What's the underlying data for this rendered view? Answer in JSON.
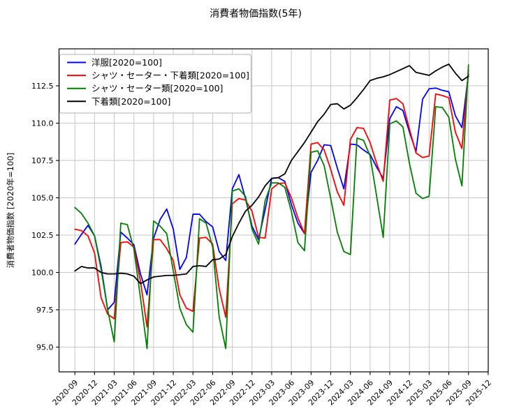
{
  "chart_data": {
    "type": "line",
    "title": "消費者物価指数(5年)",
    "ylabel": "消費者物価指数 [2020年=100]",
    "grid": true,
    "legend_position": "upper left",
    "ylim": [
      93.35,
      114.98
    ],
    "y_ticks": [
      95.0,
      97.5,
      100.0,
      102.5,
      105.0,
      107.5,
      110.0,
      112.5
    ],
    "x_tick_labels": [
      "2020-09",
      "2020-12",
      "2021-03",
      "2021-06",
      "2021-09",
      "2021-12",
      "2022-03",
      "2022-06",
      "2022-09",
      "2022-12",
      "2023-03",
      "2023-06",
      "2023-09",
      "2023-12",
      "2024-03",
      "2024-06",
      "2024-09",
      "2024-12",
      "2025-03",
      "2025-06",
      "2025-09",
      "2025-12"
    ],
    "x": [
      "2020-09",
      "2020-10",
      "2020-11",
      "2020-12",
      "2021-01",
      "2021-02",
      "2021-03",
      "2021-04",
      "2021-05",
      "2021-06",
      "2021-07",
      "2021-08",
      "2021-09",
      "2021-10",
      "2021-11",
      "2021-12",
      "2022-01",
      "2022-02",
      "2022-03",
      "2022-04",
      "2022-05",
      "2022-06",
      "2022-07",
      "2022-08",
      "2022-09",
      "2022-10",
      "2022-11",
      "2022-12",
      "2023-01",
      "2023-02",
      "2023-03",
      "2023-04",
      "2023-05",
      "2023-06",
      "2023-07",
      "2023-08",
      "2023-09",
      "2023-10",
      "2023-11",
      "2023-12",
      "2024-01",
      "2024-02",
      "2024-03",
      "2024-04",
      "2024-05",
      "2024-06",
      "2024-07",
      "2024-08",
      "2024-09",
      "2024-10",
      "2024-11",
      "2024-12",
      "2025-01",
      "2025-02",
      "2025-03",
      "2025-04",
      "2025-05",
      "2025-06",
      "2025-07",
      "2025-08",
      "2025-09"
    ],
    "series": [
      {
        "name": "洋服[2020=100]",
        "color": "#0000ff",
        "values": [
          101.9,
          102.55,
          103.15,
          102.45,
          100.4,
          97.5,
          98.0,
          102.7,
          102.3,
          101.85,
          99.9,
          98.5,
          102.3,
          103.55,
          104.25,
          102.9,
          100.2,
          101.0,
          103.9,
          103.9,
          103.4,
          103.05,
          101.4,
          100.8,
          105.6,
          106.55,
          104.95,
          103.1,
          102.2,
          104.2,
          106.3,
          106.35,
          106.1,
          104.55,
          103.3,
          102.6,
          106.7,
          107.5,
          108.55,
          108.5,
          107.0,
          105.6,
          108.6,
          108.55,
          108.2,
          107.9,
          107.05,
          106.3,
          110.3,
          111.1,
          110.85,
          109.4,
          108.1,
          111.6,
          112.3,
          112.35,
          112.2,
          112.1,
          110.5,
          109.7,
          113.3
        ]
      },
      {
        "name": "シャツ・セーター・下着類[2020=100]",
        "color": "#ff0000",
        "values": [
          102.9,
          102.8,
          102.45,
          101.3,
          98.3,
          97.2,
          96.9,
          102.0,
          102.05,
          101.7,
          99.4,
          96.35,
          102.2,
          102.2,
          101.6,
          100.8,
          98.5,
          97.6,
          97.4,
          102.3,
          102.35,
          101.9,
          98.9,
          97.0,
          104.6,
          104.95,
          104.85,
          104.1,
          102.35,
          102.3,
          105.6,
          105.95,
          106.0,
          105.0,
          103.65,
          102.6,
          108.6,
          108.7,
          108.2,
          106.9,
          105.4,
          104.5,
          108.9,
          109.7,
          109.65,
          108.7,
          107.3,
          106.1,
          111.55,
          111.65,
          111.3,
          109.6,
          108.0,
          107.7,
          107.8,
          111.95,
          111.85,
          111.7,
          109.4,
          108.3,
          113.55
        ]
      },
      {
        "name": "シャツ・セーター類[2020=100]",
        "color": "#008000",
        "values": [
          104.35,
          103.95,
          103.3,
          102.45,
          100.2,
          97.5,
          95.35,
          103.3,
          103.2,
          101.55,
          98.3,
          94.9,
          103.45,
          103.1,
          102.6,
          100.1,
          97.6,
          96.5,
          96.0,
          103.6,
          103.3,
          101.7,
          97.0,
          94.9,
          105.45,
          105.6,
          105.1,
          102.9,
          101.9,
          104.8,
          106.0,
          106.0,
          105.7,
          104.1,
          102.0,
          101.45,
          108.05,
          108.15,
          107.15,
          104.95,
          102.7,
          101.4,
          101.2,
          109.0,
          108.85,
          107.8,
          105.1,
          102.35,
          109.95,
          110.15,
          109.75,
          107.3,
          105.3,
          104.95,
          105.1,
          111.1,
          111.05,
          110.4,
          107.6,
          105.8,
          113.9
        ]
      },
      {
        "name": "下着類[2020=100]",
        "color": "#000000",
        "values": [
          100.1,
          100.4,
          100.3,
          100.3,
          100.0,
          99.9,
          99.9,
          99.95,
          99.9,
          99.75,
          99.25,
          99.5,
          99.7,
          99.75,
          99.8,
          99.8,
          99.85,
          99.9,
          100.4,
          100.45,
          100.4,
          100.85,
          100.9,
          101.2,
          102.4,
          103.3,
          104.1,
          104.5,
          105.05,
          105.8,
          106.3,
          106.35,
          106.6,
          107.5,
          108.1,
          108.7,
          109.4,
          110.1,
          110.6,
          111.25,
          111.3,
          110.95,
          111.2,
          111.7,
          112.25,
          112.85,
          113.0,
          113.1,
          113.25,
          113.45,
          113.65,
          113.85,
          113.4,
          113.3,
          113.2,
          113.5,
          113.75,
          113.95,
          113.35,
          112.85,
          113.15
        ]
      }
    ]
  }
}
